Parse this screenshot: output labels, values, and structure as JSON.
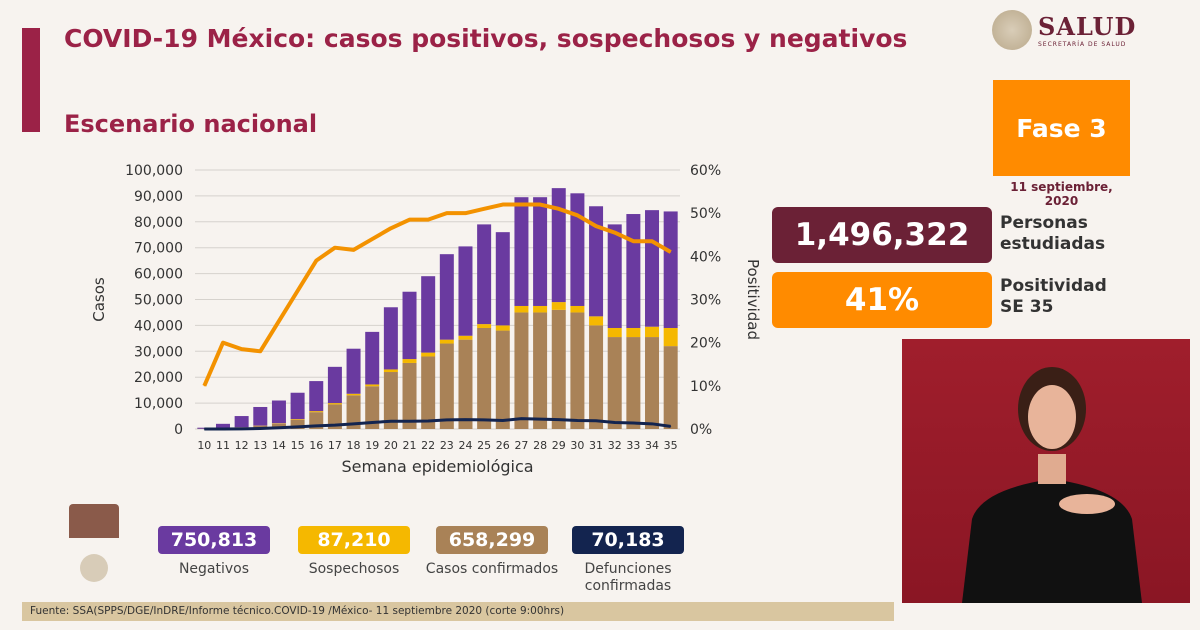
{
  "header": {
    "title": "COVID-19 México: casos positivos, sospechosos y negativos",
    "subtitle": "Escenario nacional"
  },
  "logo": {
    "name": "SALUD",
    "sub": "SECRETARÍA DE SALUD"
  },
  "phase": {
    "label": "Fase 3",
    "date": "11 septiembre, 2020"
  },
  "stats": {
    "personas_value": "1,496,322",
    "personas_label": "Personas estudiadas",
    "positividad_value": "41%",
    "positividad_label": "Positividad SE 35"
  },
  "totals": [
    {
      "value": "750,813",
      "label": "Negativos",
      "color": "#6a3aa0"
    },
    {
      "value": "87,210",
      "label": "Sospechosos",
      "color": "#f5b800"
    },
    {
      "value": "658,299",
      "label": "Casos confirmados",
      "color": "#a98257"
    },
    {
      "value": "70,183",
      "label": "Defunciones confirmadas",
      "color": "#13244f"
    }
  ],
  "source": "Fuente: SSA(SPPS/DGE/InDRE/Informe técnico.COVID-19 /México- 11 septiembre 2020 (corte 9:00hrs)",
  "chart_data": {
    "type": "bar",
    "stacked": true,
    "xlabel": "Semana epidemiológica",
    "ylabel": "Casos",
    "y2label": "Positividad",
    "ylim": [
      0,
      100000
    ],
    "y2lim": [
      0,
      60
    ],
    "yticks": [
      "0",
      "10,000",
      "20,000",
      "30,000",
      "40,000",
      "50,000",
      "60,000",
      "70,000",
      "80,000",
      "90,000",
      "100,000"
    ],
    "y2ticks": [
      "0%",
      "10%",
      "20%",
      "30%",
      "40%",
      "50%",
      "60%"
    ],
    "grid": true,
    "categories": [
      "10",
      "11",
      "12",
      "13",
      "14",
      "15",
      "16",
      "17",
      "18",
      "19",
      "20",
      "21",
      "22",
      "23",
      "24",
      "25",
      "26",
      "27",
      "28",
      "29",
      "30",
      "31",
      "32",
      "33",
      "34",
      "35"
    ],
    "series": [
      {
        "key": "confirmados",
        "color": "#a98257",
        "values": [
          100,
          300,
          700,
          1200,
          2000,
          3500,
          6500,
          9500,
          13000,
          16500,
          22000,
          25500,
          28000,
          33000,
          34500,
          39000,
          38000,
          45000,
          45000,
          46000,
          45000,
          40000,
          35500,
          35500,
          35500,
          32000
        ]
      },
      {
        "key": "sospechosos",
        "color": "#f5b800",
        "values": [
          0,
          0,
          0,
          100,
          200,
          300,
          400,
          500,
          600,
          700,
          1000,
          1500,
          1500,
          1500,
          1500,
          1500,
          2000,
          2500,
          2500,
          3000,
          2500,
          3500,
          3500,
          3500,
          4000,
          7000
        ]
      },
      {
        "key": "negativos",
        "color": "#6a3aa0",
        "values": [
          400,
          1700,
          4300,
          7200,
          8800,
          10200,
          11600,
          14000,
          17400,
          20300,
          24000,
          26000,
          29500,
          33000,
          34500,
          38500,
          36000,
          42000,
          42000,
          44000,
          43500,
          42500,
          40000,
          44000,
          45000,
          45000
        ]
      },
      {
        "key": "defunciones",
        "type": "line",
        "color": "#13244f",
        "values": [
          0,
          0,
          50,
          200,
          500,
          800,
          1200,
          1500,
          2000,
          2500,
          3000,
          3000,
          3100,
          3500,
          3600,
          3500,
          3300,
          4000,
          3800,
          3600,
          3300,
          3200,
          2500,
          2300,
          2000,
          1000
        ]
      },
      {
        "key": "positividad",
        "type": "line",
        "axis": "y2",
        "color": "#f39200",
        "values": [
          10,
          20,
          18.5,
          18,
          25,
          32,
          39,
          42,
          41.5,
          44,
          46.5,
          48.5,
          48.5,
          50,
          50,
          51,
          52,
          52,
          52,
          51,
          49.5,
          47,
          45.5,
          43.5,
          43.5,
          41
        ]
      }
    ]
  }
}
